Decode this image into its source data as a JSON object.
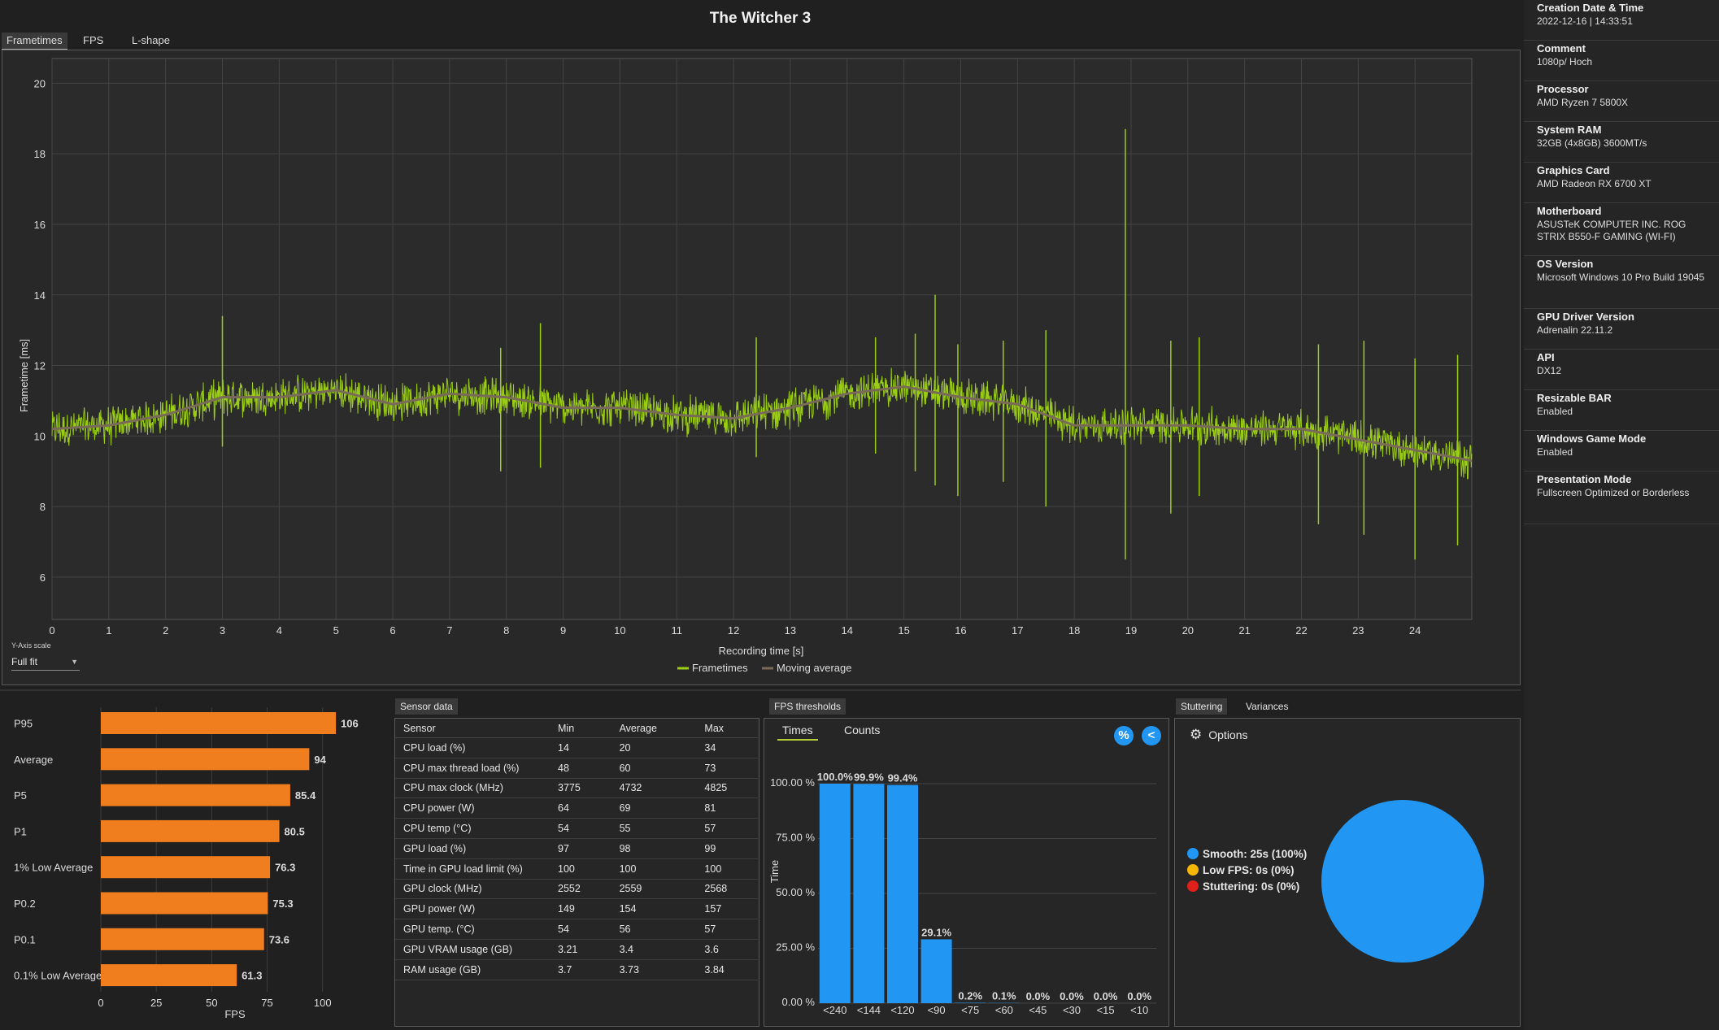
{
  "title": "The Witcher 3",
  "tabs": [
    {
      "label": "Frametimes",
      "active": true
    },
    {
      "label": "FPS",
      "active": false
    },
    {
      "label": "L-shape",
      "active": false
    }
  ],
  "yaxis_scale": {
    "caption": "Y-Axis scale",
    "value": "Full fit"
  },
  "colors": {
    "frametime": "#9acd14",
    "moving_average": "#7a6a58",
    "bar_orange": "#f07e1e",
    "bar_blue": "#2196f3",
    "low_fps": "#f5b800",
    "stutter": "#e0201a"
  },
  "chart_data": [
    {
      "type": "line",
      "ylabel": "Frametime [ms]",
      "xlabel": "Recording time [s]",
      "xlim": [
        0,
        25
      ],
      "ylim": [
        4.8,
        20.7
      ],
      "x_ticks": [
        0,
        1,
        2,
        3,
        4,
        5,
        6,
        7,
        8,
        9,
        10,
        11,
        12,
        13,
        14,
        15,
        16,
        17,
        18,
        19,
        20,
        21,
        22,
        23,
        24
      ],
      "y_ticks": [
        6,
        8,
        10,
        12,
        14,
        16,
        18,
        20
      ],
      "grid": true,
      "legend": "bottom",
      "series": [
        {
          "name": "Frametimes",
          "style": "noisy",
          "noise": 0.45
        },
        {
          "name": "Moving average"
        }
      ],
      "moving_average_x": [
        0,
        1,
        2,
        3,
        4,
        5,
        6,
        7,
        8,
        9,
        10,
        11,
        12,
        13,
        14,
        15,
        16,
        17,
        18,
        19,
        20,
        21,
        22,
        23,
        24,
        25
      ],
      "moving_average_y": [
        10.2,
        10.3,
        10.6,
        11.1,
        11.1,
        11.3,
        10.9,
        11.2,
        11.1,
        10.8,
        10.8,
        10.6,
        10.5,
        10.8,
        11.2,
        11.4,
        11.1,
        10.9,
        10.3,
        10.3,
        10.3,
        10.2,
        10.2,
        9.9,
        9.6,
        9.3
      ],
      "spikes": [
        {
          "x": 3.0,
          "min": 9.7,
          "max": 13.4
        },
        {
          "x": 7.9,
          "min": 9.0,
          "max": 12.5
        },
        {
          "x": 8.6,
          "min": 9.1,
          "max": 13.2
        },
        {
          "x": 12.4,
          "min": 9.4,
          "max": 12.8
        },
        {
          "x": 14.5,
          "min": 9.5,
          "max": 12.8
        },
        {
          "x": 15.2,
          "min": 9.0,
          "max": 12.9
        },
        {
          "x": 15.55,
          "min": 8.6,
          "max": 14.0
        },
        {
          "x": 15.95,
          "min": 8.3,
          "max": 12.6
        },
        {
          "x": 16.75,
          "min": 8.7,
          "max": 12.7
        },
        {
          "x": 17.5,
          "min": 8.0,
          "max": 13.0
        },
        {
          "x": 18.9,
          "min": 6.5,
          "max": 18.7
        },
        {
          "x": 19.7,
          "min": 7.8,
          "max": 12.7
        },
        {
          "x": 20.2,
          "min": 8.3,
          "max": 12.8
        },
        {
          "x": 22.3,
          "min": 7.5,
          "max": 12.6
        },
        {
          "x": 23.1,
          "min": 7.2,
          "max": 12.7
        },
        {
          "x": 24.0,
          "min": 6.5,
          "max": 12.2
        },
        {
          "x": 24.75,
          "min": 6.9,
          "max": 12.3
        }
      ]
    },
    {
      "type": "bar",
      "orientation": "horizontal",
      "categories": [
        "P95",
        "Average",
        "P5",
        "P1",
        "1% Low Average",
        "P0.2",
        "P0.1",
        "0.1% Low Average"
      ],
      "values": [
        106,
        94,
        85.4,
        80.5,
        76.3,
        75.3,
        73.6,
        61.3
      ],
      "value_labels": [
        "106",
        "94",
        "85.4",
        "80.5",
        "76.3",
        "75.3",
        "73.6",
        "61.3"
      ],
      "xlabel": "FPS",
      "x_ticks": [
        0,
        25,
        50,
        75,
        100
      ],
      "xlim": [
        0,
        110
      ]
    },
    {
      "type": "bar",
      "categories": [
        "<240",
        "<144",
        "<120",
        "<90",
        "<75",
        "<60",
        "<45",
        "<30",
        "<15",
        "<10"
      ],
      "values": [
        100.0,
        99.9,
        99.4,
        29.1,
        0.2,
        0.1,
        0.0,
        0.0,
        0.0,
        0.0
      ],
      "value_labels": [
        "100.0%",
        "99.9%",
        "99.4%",
        "29.1%",
        "0.2%",
        "0.1%",
        "0.0%",
        "0.0%",
        "0.0%",
        "0.0%"
      ],
      "ylabel": "Time",
      "y_ticks": [
        "0.00 %",
        "25.00 %",
        "50.00 %",
        "75.00 %",
        "100.00 %"
      ],
      "ylim": [
        0,
        100
      ]
    },
    {
      "type": "pie",
      "values": [
        100,
        0,
        0
      ],
      "legend": "left"
    }
  ],
  "sidebar": {
    "items": [
      {
        "label": "Creation Date & Time",
        "value": "2022-12-16  |  14:33:51"
      },
      {
        "label": "Comment",
        "value": "1080p/ Hoch"
      },
      {
        "label": "Processor",
        "value": "AMD Ryzen 7 5800X"
      },
      {
        "label": "System RAM",
        "value": "32GB (4x8GB) 3600MT/s"
      },
      {
        "label": "Graphics Card",
        "value": "AMD Radeon RX 6700 XT"
      },
      {
        "label": "Motherboard",
        "value": "ASUSTeK COMPUTER INC. ROG STRIX B550-F GAMING (WI-FI)"
      },
      {
        "label": "OS Version",
        "value": "Microsoft Windows 10 Pro Build 19045"
      },
      {
        "label": "GPU Driver Version",
        "value": "Adrenalin 22.11.2"
      },
      {
        "label": "API",
        "value": "DX12"
      },
      {
        "label": "Resizable BAR",
        "value": "Enabled"
      },
      {
        "label": "Windows Game Mode",
        "value": "Enabled"
      },
      {
        "label": "Presentation Mode",
        "value": "Fullscreen Optimized or Borderless"
      }
    ]
  },
  "sensor": {
    "tab": "Sensor data",
    "headers": [
      "Sensor",
      "Min",
      "Average",
      "Max"
    ],
    "rows": [
      [
        "CPU load (%)",
        "14",
        "20",
        "34"
      ],
      [
        "CPU max thread load (%)",
        "48",
        "60",
        "73"
      ],
      [
        "CPU max clock (MHz)",
        "3775",
        "4732",
        "4825"
      ],
      [
        "CPU power (W)",
        "64",
        "69",
        "81"
      ],
      [
        "CPU temp (°C)",
        "54",
        "55",
        "57"
      ],
      [
        "GPU load (%)",
        "97",
        "98",
        "99"
      ],
      [
        "Time in GPU load limit (%)",
        "100",
        "100",
        "100"
      ],
      [
        "GPU clock (MHz)",
        "2552",
        "2559",
        "2568"
      ],
      [
        "GPU power (W)",
        "149",
        "154",
        "157"
      ],
      [
        "GPU temp. (°C)",
        "54",
        "56",
        "57"
      ],
      [
        "GPU VRAM usage (GB)",
        "3.21",
        "3.4",
        "3.6"
      ],
      [
        "RAM usage (GB)",
        "3.7",
        "3.73",
        "3.84"
      ]
    ]
  },
  "fps_thresholds": {
    "tab": "FPS thresholds",
    "subtabs": [
      "Times",
      "Counts"
    ],
    "percent_button": "%",
    "share_button": "<"
  },
  "stuttering": {
    "tabs": [
      "Stuttering",
      "Variances"
    ],
    "options_label": "Options",
    "legend": [
      {
        "label": "Smooth:  25s (100%)"
      },
      {
        "label": "Low FPS:  0s (0%)"
      },
      {
        "label": "Stuttering:  0s (0%)"
      }
    ]
  }
}
